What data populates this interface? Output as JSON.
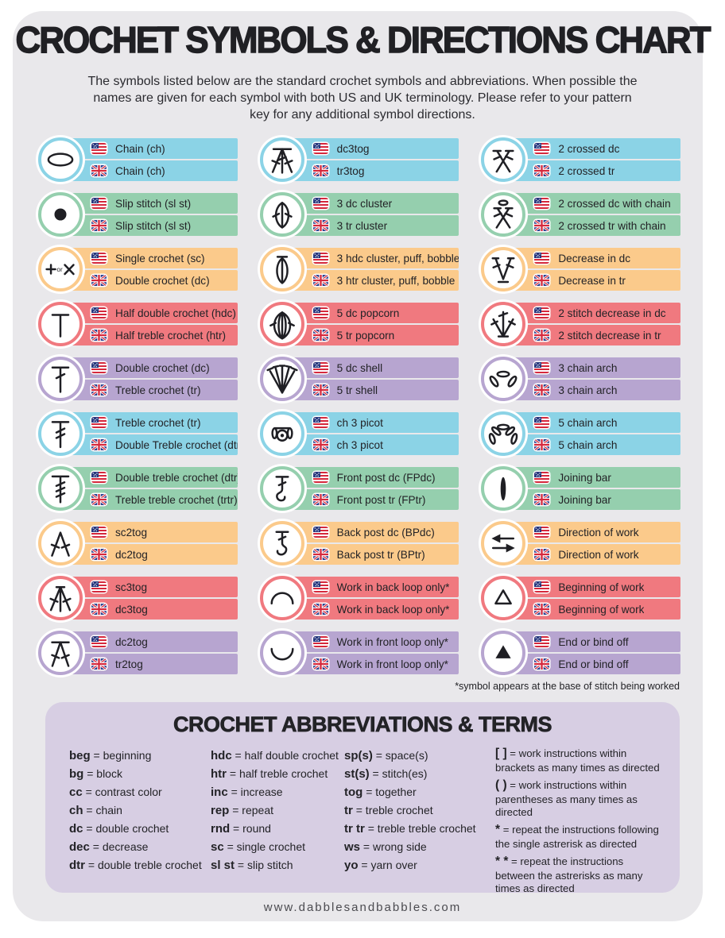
{
  "page": {
    "title": "CROCHET SYMBOLS & DIRECTIONS CHART",
    "subtitle": "The symbols listed below are the standard crochet symbols and abbreviations. When possible the names are given for each symbol with both US and UK terminology. Please refer to your pattern key for any additional symbol directions.",
    "footnote": "*symbol appears at the base of stitch being worked",
    "footer": "www.dabblesandbabbles.com"
  },
  "colors": {
    "blue": "#8bd3e6",
    "green": "#95cfae",
    "orange": "#fbca8b",
    "red": "#f0797f",
    "purple": "#b7a5d0",
    "panel": "#d7cee3",
    "page_bg": "#e9e8eb",
    "ink": "#1f1f24"
  },
  "symbol_columns": [
    {
      "entries": [
        {
          "icon": "chain-icon",
          "color": "blue",
          "us": "Chain (ch)",
          "uk": "Chain (ch)"
        },
        {
          "icon": "slip-stitch-icon",
          "color": "green",
          "us": "Slip stitch (sl st)",
          "uk": "Slip stitch (sl st)"
        },
        {
          "icon": "single-crochet-icon",
          "color": "orange",
          "us": "Single crochet (sc)",
          "uk": "Double crochet (dc)"
        },
        {
          "icon": "half-double-crochet-icon",
          "color": "red",
          "us": "Half double crochet (hdc)",
          "uk": "Half treble crochet (htr)"
        },
        {
          "icon": "double-crochet-icon",
          "color": "purple",
          "us": "Double crochet (dc)",
          "uk": "Treble crochet (tr)"
        },
        {
          "icon": "treble-crochet-icon",
          "color": "blue",
          "us": "Treble crochet (tr)",
          "uk": "Double Treble crochet (dtr)"
        },
        {
          "icon": "double-treble-crochet-icon",
          "color": "green",
          "us": "Double treble crochet (dtr)",
          "uk": "Treble treble crochet (trtr)"
        },
        {
          "icon": "sc2tog-icon",
          "color": "orange",
          "us": "sc2tog",
          "uk": "dc2tog"
        },
        {
          "icon": "sc3tog-icon",
          "color": "red",
          "us": "sc3tog",
          "uk": "dc3tog"
        },
        {
          "icon": "dc2tog-icon",
          "color": "purple",
          "us": "dc2tog",
          "uk": "tr2tog"
        }
      ]
    },
    {
      "entries": [
        {
          "icon": "dc3tog-icon",
          "color": "blue",
          "us": "dc3tog",
          "uk": "tr3tog"
        },
        {
          "icon": "cluster-3dc-icon",
          "color": "green",
          "us": "3 dc cluster",
          "uk": "3 tr cluster"
        },
        {
          "icon": "puff-bobble-icon",
          "color": "orange",
          "us": "3 hdc cluster, puff, bobble",
          "uk": "3 htr cluster, puff, bobble"
        },
        {
          "icon": "popcorn-icon",
          "color": "red",
          "us": "5 dc popcorn",
          "uk": "5 tr popcorn"
        },
        {
          "icon": "shell-icon",
          "color": "purple",
          "us": "5 dc shell",
          "uk": "5 tr shell"
        },
        {
          "icon": "picot-icon",
          "color": "blue",
          "us": "ch 3 picot",
          "uk": "ch 3 picot"
        },
        {
          "icon": "front-post-icon",
          "color": "green",
          "us": "Front post dc (FPdc)",
          "uk": "Front post tr (FPtr)"
        },
        {
          "icon": "back-post-icon",
          "color": "orange",
          "us": "Back post dc (BPdc)",
          "uk": "Back post tr (BPtr)"
        },
        {
          "icon": "back-loop-icon",
          "color": "red",
          "us": "Work in back loop only*",
          "uk": "Work in back loop only*"
        },
        {
          "icon": "front-loop-icon",
          "color": "purple",
          "us": "Work in front loop only*",
          "uk": "Work in front loop only*"
        }
      ]
    },
    {
      "entries": [
        {
          "icon": "crossed-dc-icon",
          "color": "blue",
          "us": "2 crossed dc",
          "uk": "2 crossed tr"
        },
        {
          "icon": "crossed-dc-chain-icon",
          "color": "green",
          "us": "2 crossed dc with chain",
          "uk": "2 crossed tr with chain"
        },
        {
          "icon": "decrease-icon",
          "color": "orange",
          "us": "Decrease in dc",
          "uk": "Decrease in tr"
        },
        {
          "icon": "stitch-decrease-icon",
          "color": "red",
          "us": "2 stitch decrease in dc",
          "uk": "2 stitch decrease in tr"
        },
        {
          "icon": "chain-arch-3-icon",
          "color": "purple",
          "us": "3 chain arch",
          "uk": "3 chain arch"
        },
        {
          "icon": "chain-arch-5-icon",
          "color": "blue",
          "us": "5 chain arch",
          "uk": "5 chain arch"
        },
        {
          "icon": "joining-bar-icon",
          "color": "green",
          "us": "Joining bar",
          "uk": "Joining bar"
        },
        {
          "icon": "direction-of-work-icon",
          "color": "orange",
          "us": "Direction of work",
          "uk": "Direction of work"
        },
        {
          "icon": "beginning-of-work-icon",
          "color": "red",
          "us": "Beginning of work",
          "uk": "Beginning of work"
        },
        {
          "icon": "end-bind-off-icon",
          "color": "purple",
          "us": "End or bind off",
          "uk": "End or bind off"
        }
      ]
    }
  ],
  "abbreviations": {
    "title": "CROCHET ABBREVIATIONS & TERMS",
    "separator": "=",
    "columns": [
      [
        {
          "abbr": "beg",
          "def": "beginning"
        },
        {
          "abbr": "bg",
          "def": "block"
        },
        {
          "abbr": "cc",
          "def": "contrast color"
        },
        {
          "abbr": "ch",
          "def": "chain"
        },
        {
          "abbr": "dc",
          "def": "double crochet"
        },
        {
          "abbr": "dec",
          "def": "decrease"
        },
        {
          "abbr": "dtr",
          "def": "double treble crochet"
        }
      ],
      [
        {
          "abbr": "hdc",
          "def": "half double crochet"
        },
        {
          "abbr": "htr",
          "def": "half treble crochet"
        },
        {
          "abbr": "inc",
          "def": "increase"
        },
        {
          "abbr": "rep",
          "def": "repeat"
        },
        {
          "abbr": "rnd",
          "def": "round"
        },
        {
          "abbr": "sc",
          "def": "single crochet"
        },
        {
          "abbr": "sl st",
          "def": "slip stitch"
        }
      ],
      [
        {
          "abbr": "sp(s)",
          "def": "space(s)"
        },
        {
          "abbr": "st(s)",
          "def": "stitch(es)"
        },
        {
          "abbr": "tog",
          "def": "together"
        },
        {
          "abbr": "tr",
          "def": "treble crochet"
        },
        {
          "abbr": "tr tr",
          "def": "treble treble crochet"
        },
        {
          "abbr": "ws",
          "def": "wrong side"
        },
        {
          "abbr": "yo",
          "def": "yarn over"
        }
      ],
      [
        {
          "abbr": "[ ]",
          "def": "work instructions within brackets as many times as directed"
        },
        {
          "abbr": "( )",
          "def": "work instructions within parentheses as many times as directed"
        },
        {
          "abbr": "*",
          "def": "repeat the instructions following the single astrerisk as directed"
        },
        {
          "abbr": "* *",
          "def": "repeat the instructions between the astrerisks as many times as directed"
        }
      ]
    ]
  }
}
